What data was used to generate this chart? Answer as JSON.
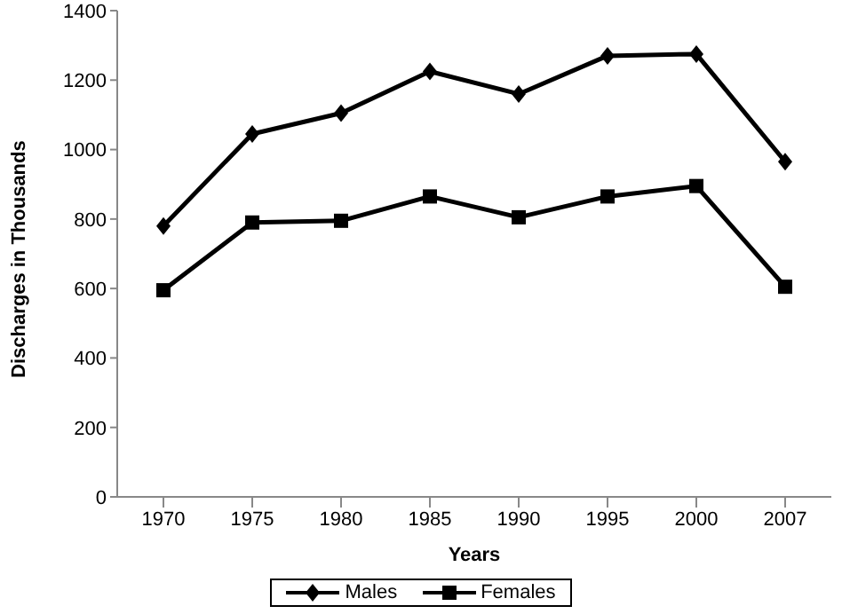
{
  "chart_data": {
    "type": "line",
    "xlabel": "Years",
    "ylabel": "Discharges in Thousands",
    "categories": [
      "1970",
      "1975",
      "1980",
      "1985",
      "1990",
      "1995",
      "2000",
      "2007"
    ],
    "series": [
      {
        "name": "Males",
        "color": "#000000",
        "marker": "diamond",
        "values": [
          780,
          1045,
          1105,
          1225,
          1160,
          1270,
          1275,
          965
        ]
      },
      {
        "name": "Females",
        "color": "#000000",
        "marker": "square",
        "values": [
          595,
          790,
          795,
          865,
          805,
          865,
          895,
          605
        ]
      }
    ],
    "ylim": [
      0,
      1400
    ],
    "yticks": [
      0,
      200,
      400,
      600,
      800,
      1000,
      1200,
      1400
    ],
    "grid": false,
    "legend": "bottom",
    "line_style": "solid"
  }
}
